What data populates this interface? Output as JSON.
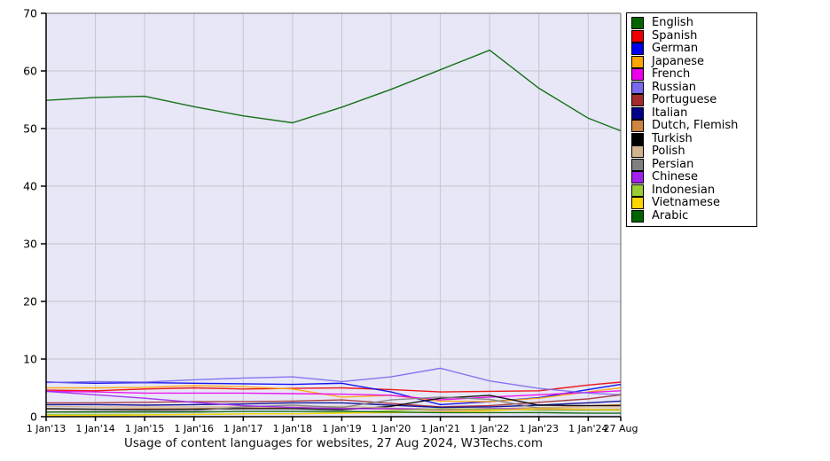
{
  "page": {
    "background": "#ffffff"
  },
  "chart_data": {
    "type": "line",
    "caption": "Usage of content languages for websites, 27 Aug 2024, W3Techs.com",
    "x_labels": [
      "1 Jan'13",
      "1 Jan'14",
      "1 Jan'15",
      "1 Jan'16",
      "1 Jan'17",
      "1 Jan'18",
      "1 Jan'19",
      "1 Jan'20",
      "1 Jan'21",
      "1 Jan'22",
      "1 Jan'23",
      "1 Jan'24",
      "27 Aug"
    ],
    "x_numeric": [
      0,
      1,
      2,
      3,
      4,
      5,
      6,
      7,
      8,
      9,
      10,
      11,
      11.66
    ],
    "ylim": [
      0,
      70
    ],
    "y_ticks": [
      0,
      10,
      20,
      30,
      40,
      50,
      60,
      70
    ],
    "grid": true,
    "legend_position": "outside-right",
    "plot_bg_color": "#e7e7f7",
    "grid_color": "#c6c6cc",
    "axis_color": "#000000",
    "frame_color": "#666666",
    "series": [
      {
        "name": "English",
        "color": "#006400",
        "values": [
          54.9,
          55.4,
          55.6,
          53.8,
          52.2,
          51.0,
          53.7,
          56.8,
          60.2,
          63.6,
          57.0,
          51.8,
          49.6
        ]
      },
      {
        "name": "Spanish",
        "color": "#ee0000",
        "values": [
          4.6,
          4.5,
          4.8,
          5.0,
          4.8,
          4.9,
          5.0,
          4.7,
          4.3,
          4.4,
          4.5,
          5.5,
          6.0
        ]
      },
      {
        "name": "German",
        "color": "#0000ee",
        "values": [
          6.0,
          5.8,
          5.9,
          5.8,
          5.7,
          5.6,
          5.8,
          4.3,
          2.1,
          2.6,
          3.3,
          4.7,
          5.6
        ]
      },
      {
        "name": "Japanese",
        "color": "#ffa500",
        "values": [
          5.0,
          5.0,
          5.1,
          5.4,
          5.2,
          4.8,
          3.4,
          3.7,
          2.7,
          2.6,
          3.2,
          4.3,
          5.0
        ]
      },
      {
        "name": "French",
        "color": "#ee00ee",
        "values": [
          4.4,
          4.3,
          4.1,
          4.1,
          4.1,
          4.0,
          3.9,
          3.7,
          2.9,
          3.4,
          3.8,
          4.2,
          4.5
        ]
      },
      {
        "name": "Russian",
        "color": "#7b68ee",
        "values": [
          5.9,
          6.1,
          6.0,
          6.4,
          6.7,
          6.9,
          6.1,
          6.9,
          8.4,
          6.2,
          4.9,
          4.1,
          3.8
        ]
      },
      {
        "name": "Portuguese",
        "color": "#a52a2a",
        "values": [
          2.4,
          2.4,
          2.5,
          2.6,
          2.6,
          2.7,
          2.9,
          2.3,
          1.7,
          1.9,
          2.5,
          3.1,
          3.8
        ]
      },
      {
        "name": "Italian",
        "color": "#00008b",
        "values": [
          2.1,
          2.1,
          2.0,
          2.1,
          2.2,
          2.4,
          2.4,
          2.0,
          1.6,
          1.7,
          2.0,
          2.4,
          2.7
        ]
      },
      {
        "name": "Dutch, Flemish",
        "color": "#cd853f",
        "values": [
          1.3,
          1.3,
          1.4,
          1.4,
          1.5,
          1.5,
          1.5,
          1.3,
          1.1,
          1.2,
          1.5,
          1.9,
          2.1
        ]
      },
      {
        "name": "Turkish",
        "color": "#000000",
        "values": [
          1.4,
          1.3,
          1.2,
          1.3,
          1.4,
          1.4,
          1.2,
          1.8,
          3.2,
          3.7,
          2.0,
          1.9,
          1.9
        ]
      },
      {
        "name": "Polish",
        "color": "#d2b48c",
        "values": [
          1.8,
          1.7,
          1.7,
          1.7,
          1.7,
          1.7,
          1.8,
          1.5,
          1.2,
          1.4,
          1.6,
          1.7,
          1.7
        ]
      },
      {
        "name": "Persian",
        "color": "#808080",
        "values": [
          0.8,
          0.9,
          0.9,
          1.0,
          1.7,
          2.0,
          1.6,
          2.9,
          3.4,
          3.0,
          1.5,
          1.3,
          1.3
        ]
      },
      {
        "name": "Chinese",
        "color": "#a020f0",
        "values": [
          4.4,
          3.8,
          3.2,
          2.5,
          1.9,
          1.6,
          1.4,
          1.4,
          1.3,
          1.4,
          1.3,
          1.2,
          1.2
        ]
      },
      {
        "name": "Indonesian",
        "color": "#9acd32",
        "values": [
          0.4,
          0.4,
          0.4,
          0.4,
          0.5,
          0.5,
          0.7,
          1.0,
          1.4,
          1.3,
          1.1,
          1.1,
          1.1
        ]
      },
      {
        "name": "Vietnamese",
        "color": "#ffd700",
        "values": [
          0.2,
          0.2,
          0.3,
          0.4,
          0.5,
          0.5,
          0.6,
          0.7,
          0.8,
          1.0,
          1.4,
          1.3,
          1.2
        ]
      },
      {
        "name": "Arabic",
        "color": "#006400",
        "values": [
          0.8,
          0.8,
          0.8,
          0.8,
          0.9,
          0.9,
          0.9,
          0.8,
          0.7,
          0.7,
          0.7,
          0.6,
          0.6
        ]
      }
    ]
  }
}
